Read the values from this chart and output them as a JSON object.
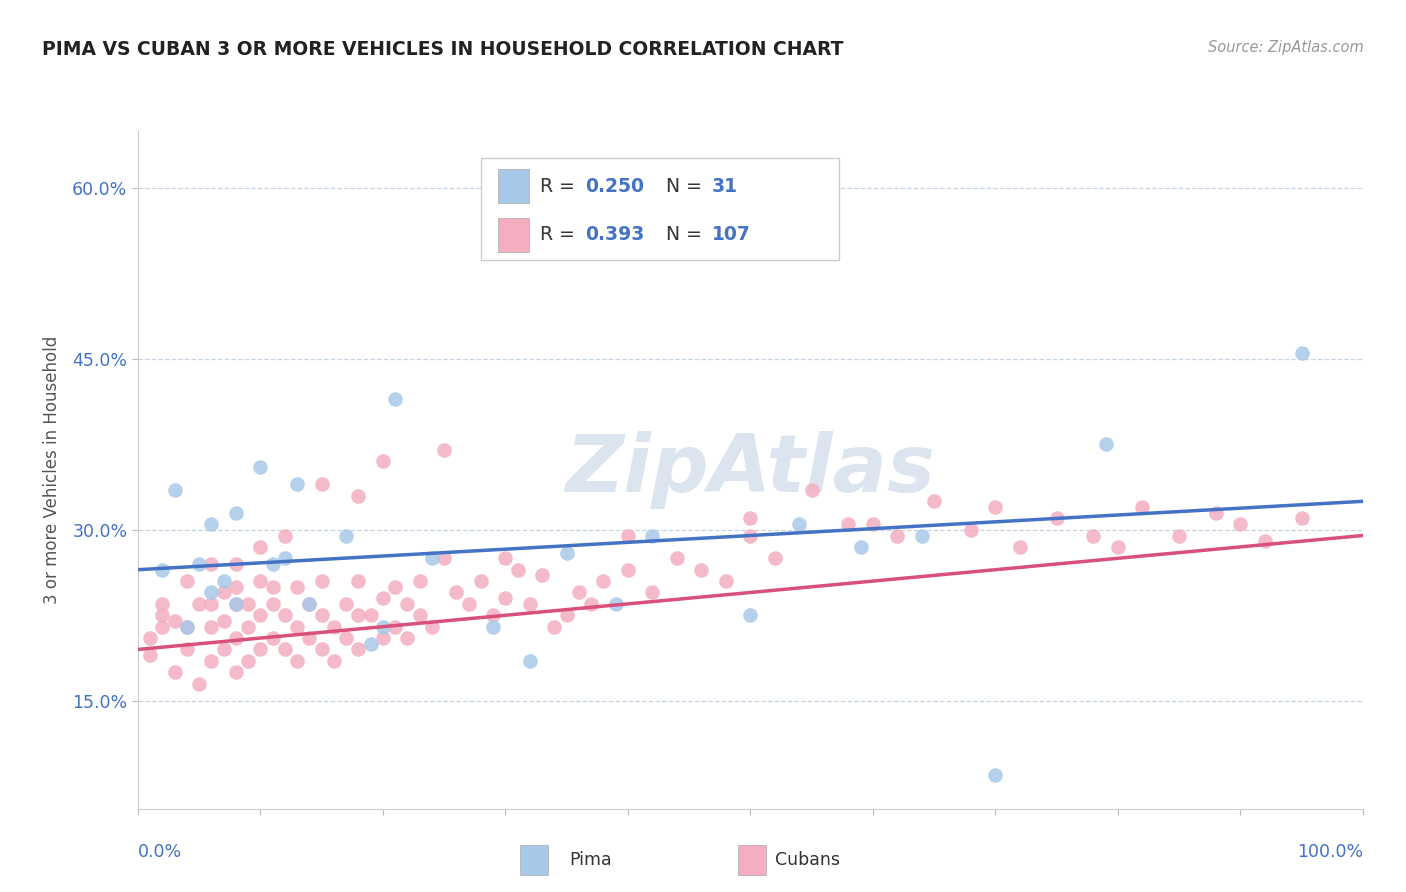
{
  "title": "PIMA VS CUBAN 3 OR MORE VEHICLES IN HOUSEHOLD CORRELATION CHART",
  "source": "Source: ZipAtlas.com",
  "ylabel": "3 or more Vehicles in Household",
  "xlim": [
    0.0,
    1.0
  ],
  "ylim": [
    0.055,
    0.65
  ],
  "yticks": [
    0.15,
    0.3,
    0.45,
    0.6
  ],
  "ytick_labels": [
    "15.0%",
    "30.0%",
    "45.0%",
    "60.0%"
  ],
  "pima_R": 0.25,
  "pima_N": 31,
  "cubans_R": 0.393,
  "cubans_N": 107,
  "legend_label1": "Pima",
  "legend_label2": "Cubans",
  "color_pima": "#a8c8e8",
  "color_cubans": "#f4aec0",
  "color_line_pima": "#4472c4",
  "color_line_cubans": "#d9507a",
  "color_text_blue": "#4472c4",
  "color_R_label": "#333333",
  "pima_line_start_y": 0.265,
  "pima_line_end_y": 0.325,
  "cubans_line_start_y": 0.195,
  "cubans_line_end_y": 0.295,
  "pima_x": [
    0.02,
    0.03,
    0.04,
    0.05,
    0.06,
    0.06,
    0.07,
    0.08,
    0.08,
    0.1,
    0.11,
    0.12,
    0.13,
    0.14,
    0.17,
    0.19,
    0.2,
    0.21,
    0.24,
    0.29,
    0.32,
    0.35,
    0.39,
    0.42,
    0.5,
    0.54,
    0.59,
    0.64,
    0.7,
    0.79,
    0.95
  ],
  "pima_y": [
    0.265,
    0.335,
    0.215,
    0.27,
    0.305,
    0.245,
    0.255,
    0.315,
    0.235,
    0.355,
    0.27,
    0.275,
    0.34,
    0.235,
    0.295,
    0.2,
    0.215,
    0.415,
    0.275,
    0.215,
    0.185,
    0.28,
    0.235,
    0.295,
    0.225,
    0.305,
    0.285,
    0.295,
    0.085,
    0.375,
    0.455
  ],
  "cubans_x": [
    0.01,
    0.01,
    0.02,
    0.02,
    0.03,
    0.03,
    0.04,
    0.04,
    0.05,
    0.05,
    0.06,
    0.06,
    0.06,
    0.07,
    0.07,
    0.07,
    0.08,
    0.08,
    0.08,
    0.08,
    0.09,
    0.09,
    0.09,
    0.1,
    0.1,
    0.1,
    0.11,
    0.11,
    0.11,
    0.12,
    0.12,
    0.13,
    0.13,
    0.13,
    0.14,
    0.14,
    0.15,
    0.15,
    0.15,
    0.16,
    0.16,
    0.17,
    0.17,
    0.18,
    0.18,
    0.18,
    0.19,
    0.2,
    0.2,
    0.21,
    0.21,
    0.22,
    0.22,
    0.23,
    0.23,
    0.24,
    0.25,
    0.26,
    0.27,
    0.28,
    0.29,
    0.3,
    0.3,
    0.31,
    0.32,
    0.33,
    0.34,
    0.35,
    0.36,
    0.37,
    0.38,
    0.4,
    0.4,
    0.42,
    0.44,
    0.46,
    0.48,
    0.5,
    0.5,
    0.52,
    0.55,
    0.58,
    0.6,
    0.62,
    0.65,
    0.68,
    0.7,
    0.72,
    0.75,
    0.78,
    0.8,
    0.82,
    0.85,
    0.88,
    0.9,
    0.92,
    0.95,
    0.25,
    0.2,
    0.18,
    0.15,
    0.12,
    0.1,
    0.08,
    0.06,
    0.04,
    0.02
  ],
  "cubans_y": [
    0.205,
    0.19,
    0.215,
    0.225,
    0.175,
    0.22,
    0.195,
    0.215,
    0.165,
    0.235,
    0.185,
    0.215,
    0.235,
    0.195,
    0.22,
    0.245,
    0.175,
    0.205,
    0.235,
    0.25,
    0.185,
    0.215,
    0.235,
    0.195,
    0.225,
    0.255,
    0.205,
    0.235,
    0.25,
    0.195,
    0.225,
    0.185,
    0.215,
    0.25,
    0.205,
    0.235,
    0.195,
    0.225,
    0.255,
    0.185,
    0.215,
    0.205,
    0.235,
    0.195,
    0.225,
    0.255,
    0.225,
    0.205,
    0.24,
    0.215,
    0.25,
    0.205,
    0.235,
    0.225,
    0.255,
    0.215,
    0.275,
    0.245,
    0.235,
    0.255,
    0.225,
    0.24,
    0.275,
    0.265,
    0.235,
    0.26,
    0.215,
    0.225,
    0.245,
    0.235,
    0.255,
    0.265,
    0.295,
    0.245,
    0.275,
    0.265,
    0.255,
    0.295,
    0.31,
    0.275,
    0.335,
    0.305,
    0.305,
    0.295,
    0.325,
    0.3,
    0.32,
    0.285,
    0.31,
    0.295,
    0.285,
    0.32,
    0.295,
    0.315,
    0.305,
    0.29,
    0.31,
    0.37,
    0.36,
    0.33,
    0.34,
    0.295,
    0.285,
    0.27,
    0.27,
    0.255,
    0.235
  ]
}
